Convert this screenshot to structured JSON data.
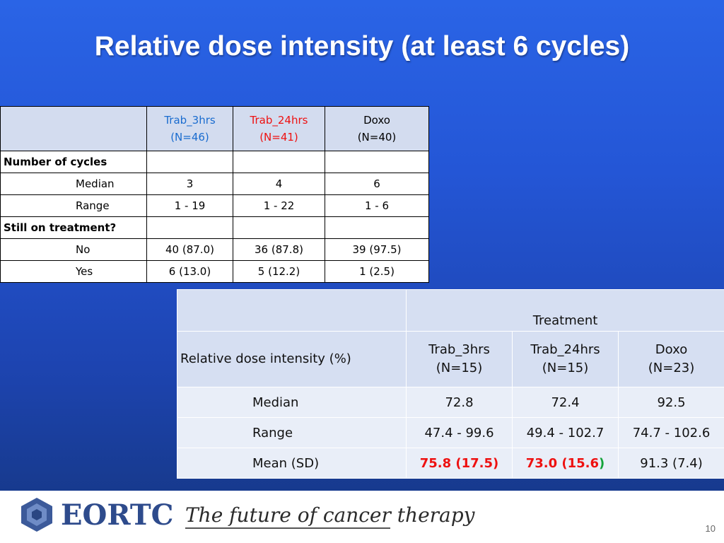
{
  "slide": {
    "title": "Relative dose intensity (at least 6 cycles)",
    "page_number": "10"
  },
  "table1": {
    "headers": [
      {
        "line1": "Trab_3hrs",
        "line2": "(N=46)",
        "color": "#1a6ccf"
      },
      {
        "line1": "Trab_24hrs",
        "line2": "(N=41)",
        "color": "#ee1111"
      },
      {
        "line1": "Doxo",
        "line2": "(N=40)",
        "color": "#000000"
      }
    ],
    "section1": "Number of cycles",
    "rows1": [
      {
        "label": "Median",
        "values": [
          "3",
          "4",
          "6"
        ]
      },
      {
        "label": "Range",
        "values": [
          "1 - 19",
          "1 - 22",
          "1 - 6"
        ]
      }
    ],
    "section2": "Still on treatment?",
    "rows2": [
      {
        "label": "No",
        "values": [
          "40 (87.0)",
          "36 (87.8)",
          "39 (97.5)"
        ]
      },
      {
        "label": "Yes",
        "values": [
          "6 (13.0)",
          "5 (12.2)",
          "1 (2.5)"
        ]
      }
    ]
  },
  "table2": {
    "group_header": "Treatment",
    "row_header": "Relative dose intensity (%)",
    "headers": [
      {
        "line1": "Trab_3hrs",
        "line2": "(N=15)"
      },
      {
        "line1": "Trab_24hrs",
        "line2": "(N=15)"
      },
      {
        "line1": "Doxo",
        "line2": "(N=23)"
      }
    ],
    "rows": [
      {
        "label": "Median",
        "values": [
          "72.8",
          "72.4",
          "92.5"
        ]
      },
      {
        "label": "Range",
        "values": [
          "47.4 - 99.6",
          "49.4 - 102.7",
          "74.7 - 102.6"
        ]
      },
      {
        "label": "Mean (SD)",
        "values": [
          "75.8 (17.5)",
          "73.0 (15.6",
          "91.3 (7.4)"
        ],
        "last_paren": ")"
      }
    ]
  },
  "footer": {
    "logo_text": "EORTC",
    "tagline": "The future of cancer therapy"
  },
  "colors": {
    "background": "#2456d6",
    "highlight_red": "#ee1111",
    "highlight_blue": "#1a6ccf",
    "highlight_green": "#14a33a"
  }
}
